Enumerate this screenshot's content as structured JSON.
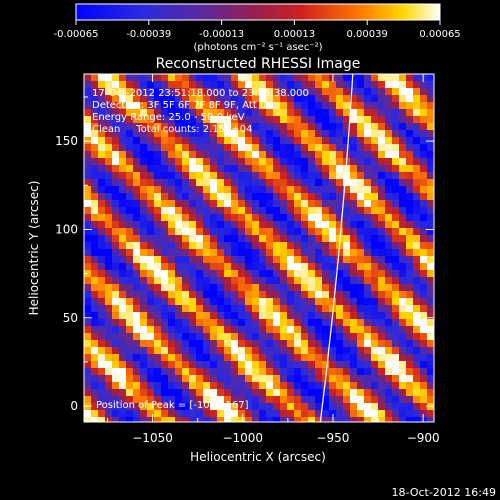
{
  "chart_data": {
    "type": "heatmap",
    "title": "Reconstructed RHESSI Image",
    "xlabel": "Heliocentric X (arcsec)",
    "ylabel": "Heliocentric Y (arcsec)",
    "xlim": [
      -1088,
      -894
    ],
    "ylim": [
      -9,
      188
    ],
    "xticks": [
      -1050,
      -1000,
      -950,
      -900
    ],
    "yticks": [
      0,
      50,
      100,
      150
    ],
    "colorbar": {
      "ticks": [
        "-0.00065",
        "-0.00039",
        "-0.00013",
        "0.00013",
        "0.00039",
        "0.00065"
      ],
      "range": [
        -0.00065,
        0.00065
      ],
      "unit_label": "(photons cm⁻² s⁻¹ asec⁻²)",
      "colors": [
        "#0000ff",
        "#3a2fa8",
        "#7a1f6e",
        "#c4202a",
        "#ff6a00",
        "#ffe200",
        "#ffffff"
      ]
    },
    "info": [
      "17-Oct-2012 23:51:18.000 to 23:55:38.000",
      "Detectors: 3F 5F 6F 7F 8F 9F, Att 0",
      "Energy Range: 25.0 - 50.0 keV",
      "Clean     Total counts: 2.15E+04"
    ],
    "peak_label": "Position of Peak = [-1022,167]",
    "limb": {
      "x_at_ymin": -957,
      "x_at_ymax": -939
    },
    "grid": false
  },
  "footer": {
    "timestamp": "18-Oct-2012 16:49"
  }
}
